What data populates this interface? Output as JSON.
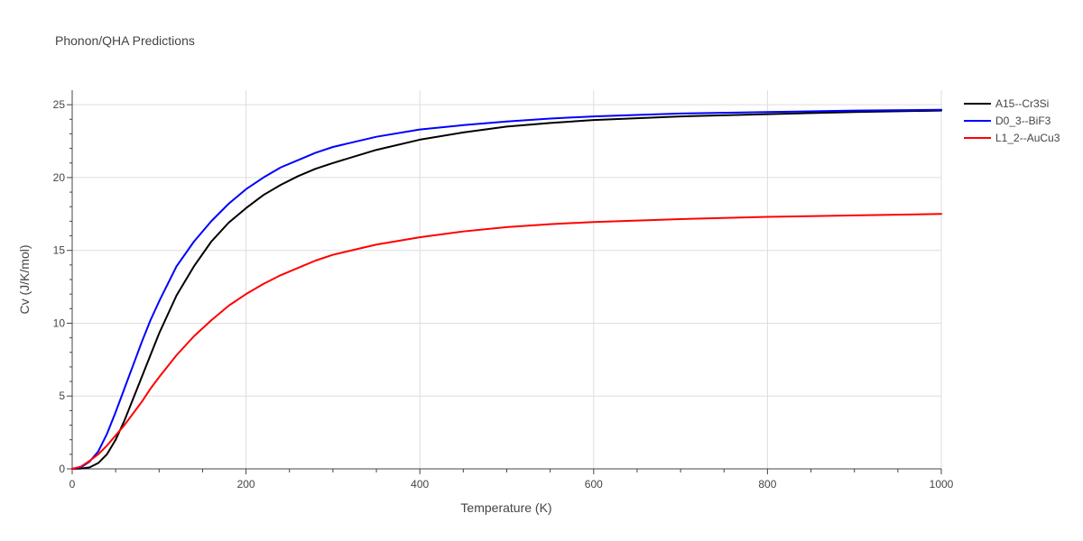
{
  "chart_data": {
    "type": "line",
    "title": "Phonon/QHA Predictions",
    "xlabel": "Temperature (K)",
    "ylabel": "Cv (J/K/mol)",
    "xlim": [
      0,
      1000
    ],
    "ylim": [
      0,
      26
    ],
    "x_ticks": [
      0,
      200,
      400,
      600,
      800,
      1000
    ],
    "y_ticks": [
      0,
      5,
      10,
      15,
      20,
      25
    ],
    "grid": true,
    "legend_position": "top-right",
    "series": [
      {
        "name": "A15--Cr3Si",
        "color": "#000000",
        "x": [
          0,
          10,
          20,
          30,
          40,
          50,
          60,
          70,
          80,
          90,
          100,
          120,
          140,
          160,
          180,
          200,
          220,
          240,
          260,
          280,
          300,
          350,
          400,
          450,
          500,
          550,
          600,
          700,
          800,
          900,
          1000
        ],
        "y": [
          0,
          0.02,
          0.1,
          0.4,
          1.0,
          2.0,
          3.3,
          4.8,
          6.3,
          7.8,
          9.3,
          11.9,
          13.9,
          15.6,
          16.9,
          17.9,
          18.8,
          19.5,
          20.1,
          20.6,
          21.0,
          21.9,
          22.6,
          23.1,
          23.5,
          23.75,
          23.95,
          24.2,
          24.35,
          24.5,
          24.6
        ]
      },
      {
        "name": "D0_3--BiF3",
        "color": "#0000ff",
        "x": [
          0,
          10,
          20,
          30,
          40,
          50,
          60,
          70,
          80,
          90,
          100,
          120,
          140,
          160,
          180,
          200,
          220,
          240,
          260,
          280,
          300,
          350,
          400,
          450,
          500,
          550,
          600,
          700,
          800,
          900,
          1000
        ],
        "y": [
          0,
          0.1,
          0.5,
          1.2,
          2.4,
          3.9,
          5.5,
          7.1,
          8.7,
          10.2,
          11.5,
          13.9,
          15.6,
          17.0,
          18.2,
          19.2,
          20.0,
          20.7,
          21.2,
          21.7,
          22.1,
          22.8,
          23.3,
          23.6,
          23.85,
          24.05,
          24.2,
          24.4,
          24.5,
          24.6,
          24.65
        ]
      },
      {
        "name": "L1_2--AuCu3",
        "color": "#ff0000",
        "x": [
          0,
          10,
          20,
          30,
          40,
          50,
          60,
          70,
          80,
          90,
          100,
          120,
          140,
          160,
          180,
          200,
          220,
          240,
          260,
          280,
          300,
          350,
          400,
          450,
          500,
          550,
          600,
          700,
          800,
          900,
          1000
        ],
        "y": [
          0,
          0.15,
          0.55,
          1.0,
          1.6,
          2.3,
          3.0,
          3.8,
          4.6,
          5.5,
          6.3,
          7.8,
          9.1,
          10.2,
          11.2,
          12.0,
          12.7,
          13.3,
          13.8,
          14.3,
          14.7,
          15.4,
          15.9,
          16.3,
          16.6,
          16.8,
          16.95,
          17.15,
          17.3,
          17.4,
          17.5
        ]
      }
    ]
  }
}
